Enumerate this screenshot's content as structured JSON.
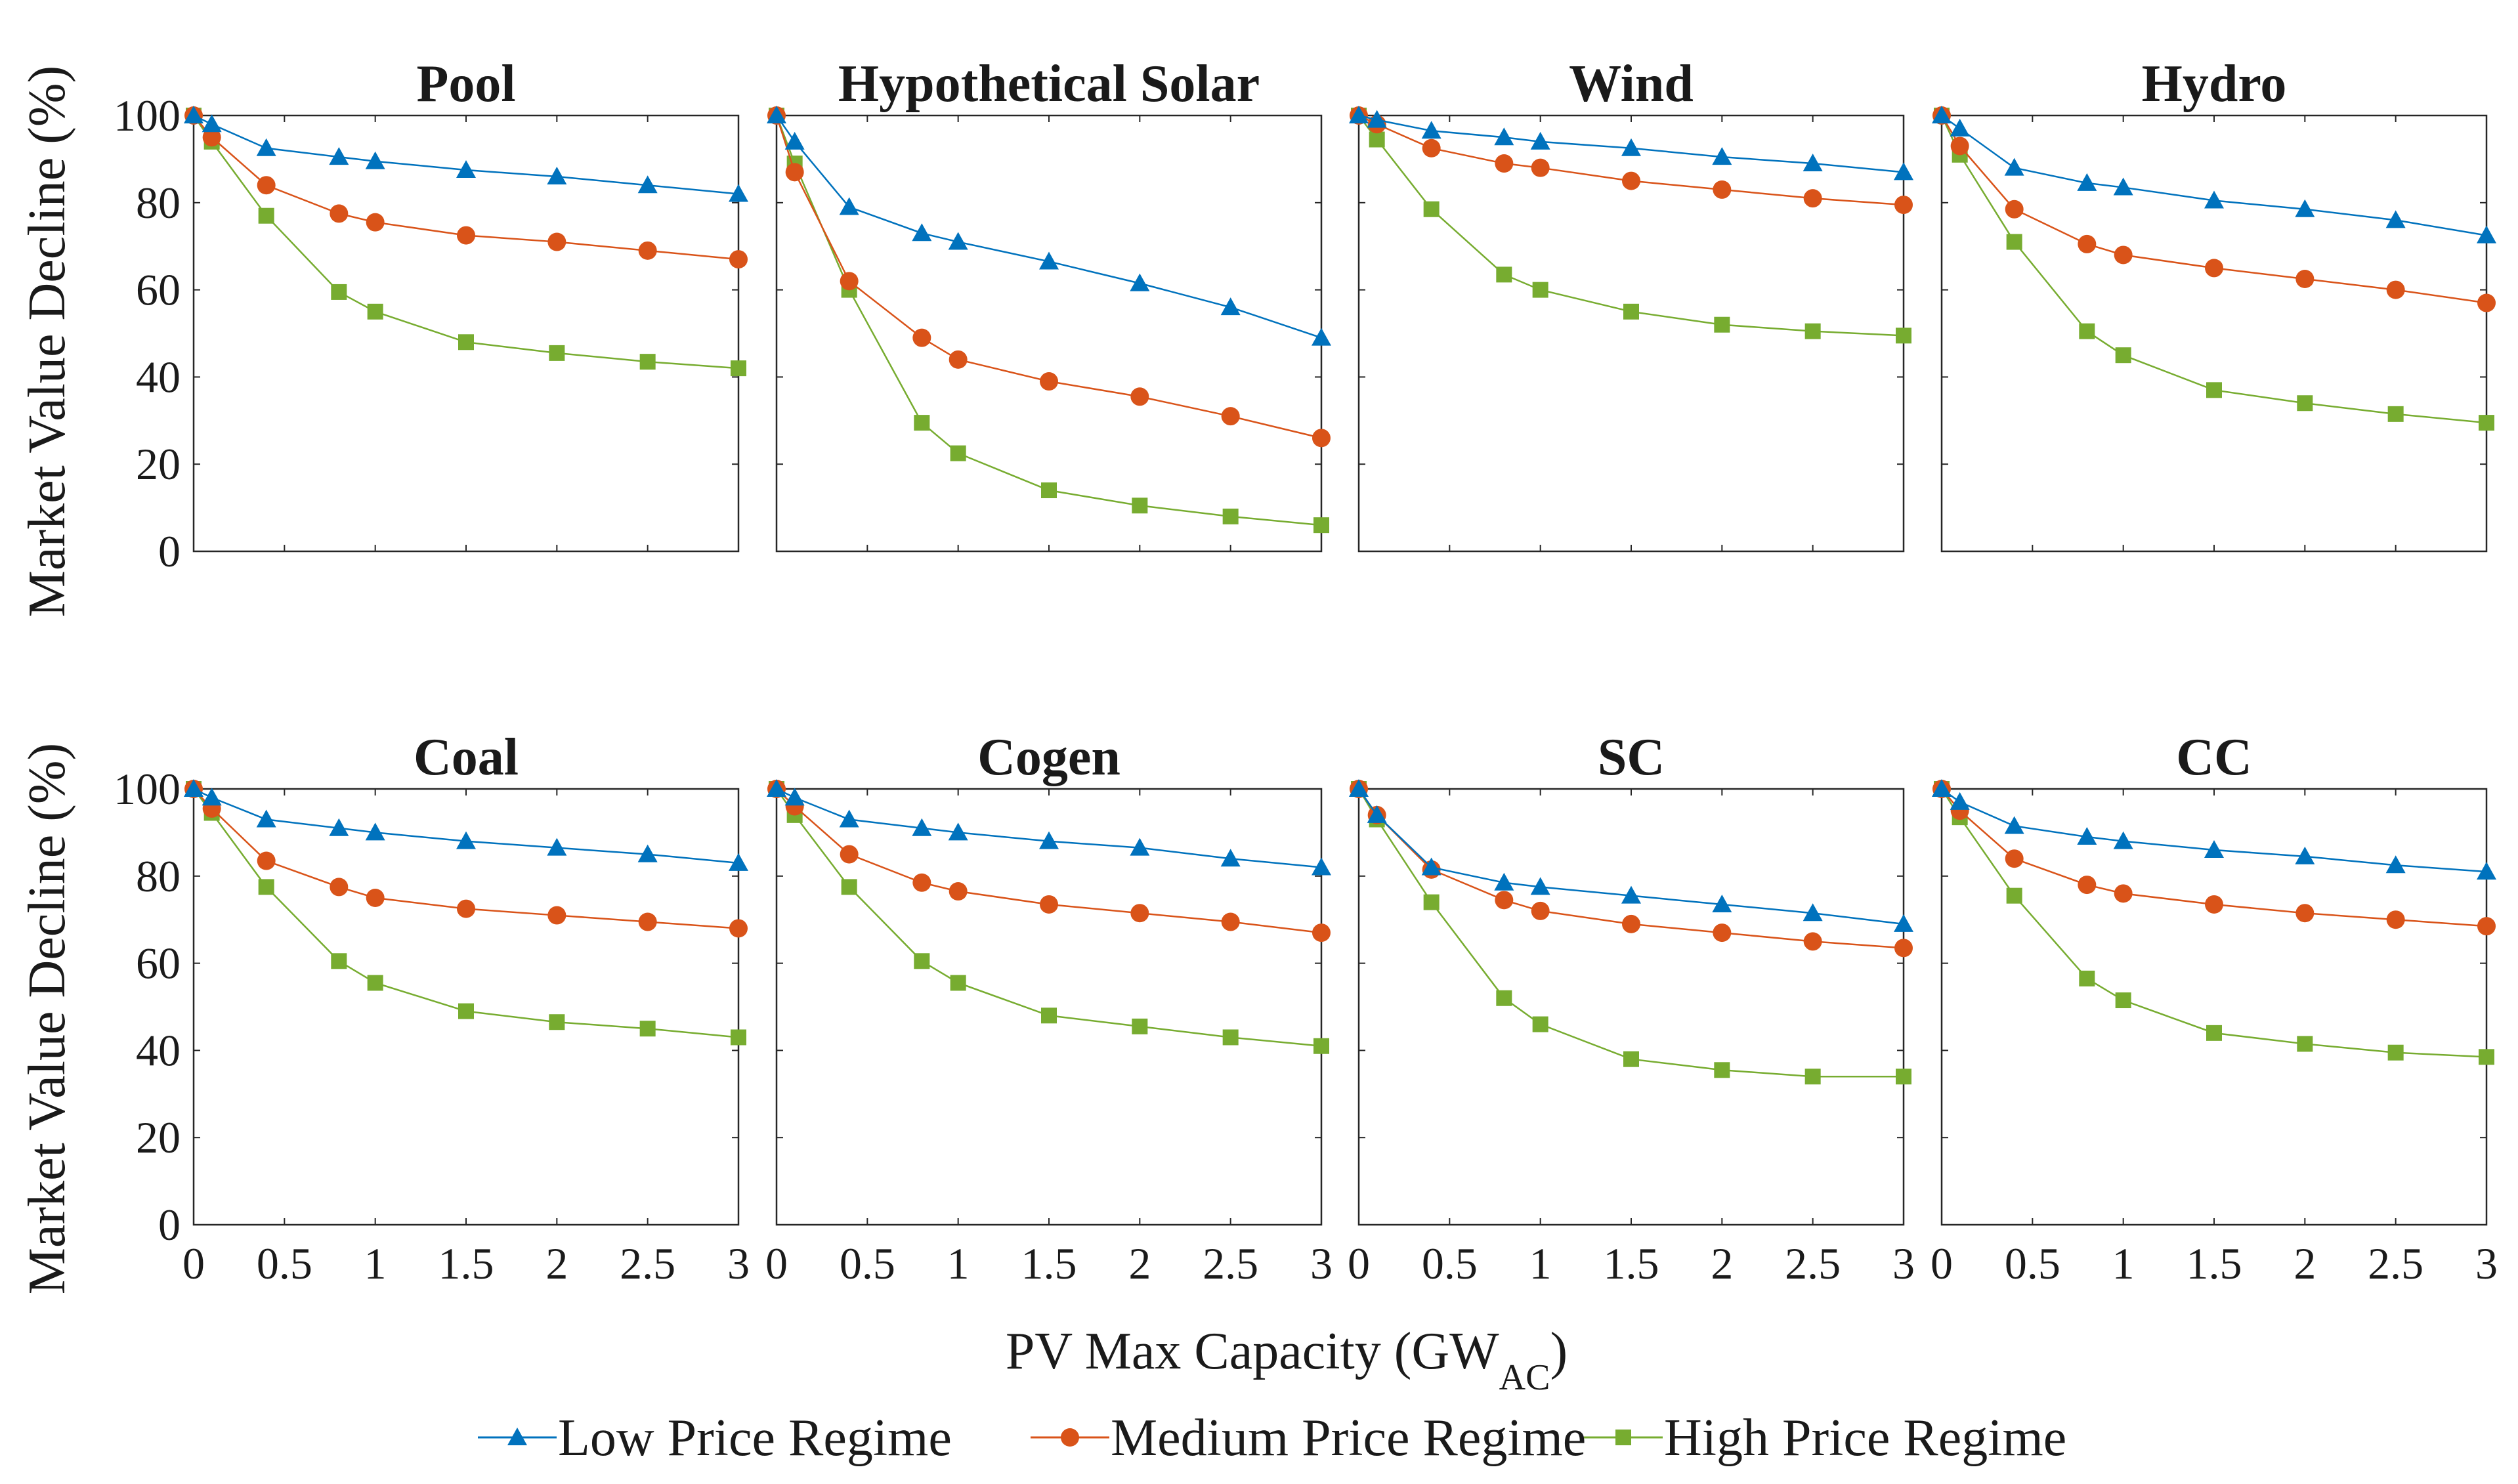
{
  "chart_data": {
    "type": "line",
    "title": "",
    "xlabel_main": "PV Max Capacity (GW",
    "xlabel_sub": "AC",
    "xlabel_close": ")",
    "ylabel": "Market Value Decline (%)",
    "x": [
      0,
      0.1,
      0.4,
      0.8,
      1,
      1.5,
      2,
      2.5,
      3
    ],
    "xticks": [
      0,
      0.5,
      1,
      1.5,
      2,
      2.5,
      3
    ],
    "xtick_labels": [
      "0",
      "0.5",
      "1",
      "1.5",
      "2",
      "2.5",
      "3"
    ],
    "yticks": [
      0,
      20,
      40,
      60,
      80,
      100
    ],
    "ytick_labels": [
      "0",
      "20",
      "40",
      "60",
      "80",
      "100"
    ],
    "xlim": [
      0,
      3
    ],
    "ylim": [
      0,
      100
    ],
    "grid": false,
    "legend_position": "bottom",
    "series_meta": [
      {
        "name": "Low Price Regime",
        "color": "#0072BD",
        "marker": "triangle"
      },
      {
        "name": "Medium Price Regime",
        "color": "#D95319",
        "marker": "circle"
      },
      {
        "name": "High Price Regime",
        "color": "#77AC30",
        "marker": "square"
      }
    ],
    "panels": [
      {
        "title": "Pool",
        "series": [
          {
            "name": "Low Price Regime",
            "values": [
              100,
              98,
              92.5,
              90.5,
              89.5,
              87.5,
              86,
              84,
              82
            ]
          },
          {
            "name": "Medium Price Regime",
            "values": [
              100,
              95,
              84,
              77.5,
              75.5,
              72.5,
              71,
              69,
              67
            ]
          },
          {
            "name": "High Price Regime",
            "values": [
              100,
              94,
              77,
              59.5,
              55,
              48,
              45.5,
              43.5,
              42
            ]
          }
        ]
      },
      {
        "title": "Hypothetical Solar",
        "series": [
          {
            "name": "Low Price Regime",
            "values": [
              100,
              94,
              79,
              73,
              71,
              66.5,
              61.5,
              56,
              49
            ]
          },
          {
            "name": "Medium Price Regime",
            "values": [
              100,
              87,
              62,
              49,
              44,
              39,
              35.5,
              31,
              26
            ]
          },
          {
            "name": "High Price Regime",
            "values": [
              100,
              89,
              60,
              29.5,
              22.5,
              14,
              10.5,
              8,
              6
            ]
          }
        ]
      },
      {
        "title": "Wind",
        "series": [
          {
            "name": "Low Price Regime",
            "values": [
              100,
              99,
              96.5,
              95,
              94,
              92.5,
              90.5,
              89,
              87
            ]
          },
          {
            "name": "Medium Price Regime",
            "values": [
              100,
              98,
              92.5,
              89,
              88,
              85,
              83,
              81,
              79.5
            ]
          },
          {
            "name": "High Price Regime",
            "values": [
              100,
              94.5,
              78.5,
              63.5,
              60,
              55,
              52,
              50.5,
              49.5
            ]
          }
        ]
      },
      {
        "title": "Hydro",
        "series": [
          {
            "name": "Low Price Regime",
            "values": [
              100,
              97,
              88,
              84.5,
              83.5,
              80.5,
              78.5,
              76,
              72.5
            ]
          },
          {
            "name": "Medium Price Regime",
            "values": [
              100,
              93,
              78.5,
              70.5,
              68,
              65,
              62.5,
              60,
              57
            ]
          },
          {
            "name": "High Price Regime",
            "values": [
              100,
              91,
              71,
              50.5,
              45,
              37,
              34,
              31.5,
              29.5
            ]
          }
        ]
      },
      {
        "title": "Coal",
        "series": [
          {
            "name": "Low Price Regime",
            "values": [
              100,
              98,
              93,
              91,
              90,
              88,
              86.5,
              85,
              83
            ]
          },
          {
            "name": "Medium Price Regime",
            "values": [
              100,
              95.5,
              83.5,
              77.5,
              75,
              72.5,
              71,
              69.5,
              68
            ]
          },
          {
            "name": "High Price Regime",
            "values": [
              100,
              94.5,
              77.5,
              60.5,
              55.5,
              49,
              46.5,
              45,
              43
            ]
          }
        ]
      },
      {
        "title": "Cogen",
        "series": [
          {
            "name": "Low Price Regime",
            "values": [
              100,
              98,
              93,
              91,
              90,
              88,
              86.5,
              84,
              82
            ]
          },
          {
            "name": "Medium Price Regime",
            "values": [
              100,
              96,
              85,
              78.5,
              76.5,
              73.5,
              71.5,
              69.5,
              67
            ]
          },
          {
            "name": "High Price Regime",
            "values": [
              100,
              94,
              77.5,
              60.5,
              55.5,
              48,
              45.5,
              43,
              41
            ]
          }
        ]
      },
      {
        "title": "SC",
        "series": [
          {
            "name": "Low Price Regime",
            "values": [
              100,
              94,
              82,
              78.5,
              77.5,
              75.5,
              73.5,
              71.5,
              69
            ]
          },
          {
            "name": "Medium Price Regime",
            "values": [
              100,
              94,
              81.5,
              74.5,
              72,
              69,
              67,
              65,
              63.5
            ]
          },
          {
            "name": "High Price Regime",
            "values": [
              100,
              93,
              74,
              52,
              46,
              38,
              35.5,
              34,
              34
            ]
          }
        ]
      },
      {
        "title": "CC",
        "series": [
          {
            "name": "Low Price Regime",
            "values": [
              100,
              97,
              91.5,
              89,
              88,
              86,
              84.5,
              82.5,
              81
            ]
          },
          {
            "name": "Medium Price Regime",
            "values": [
              100,
              95,
              84,
              78,
              76,
              73.5,
              71.5,
              70,
              68.5
            ]
          },
          {
            "name": "High Price Regime",
            "values": [
              100,
              93.5,
              75.5,
              56.5,
              51.5,
              44,
              41.5,
              39.5,
              38.5
            ]
          }
        ]
      }
    ]
  }
}
